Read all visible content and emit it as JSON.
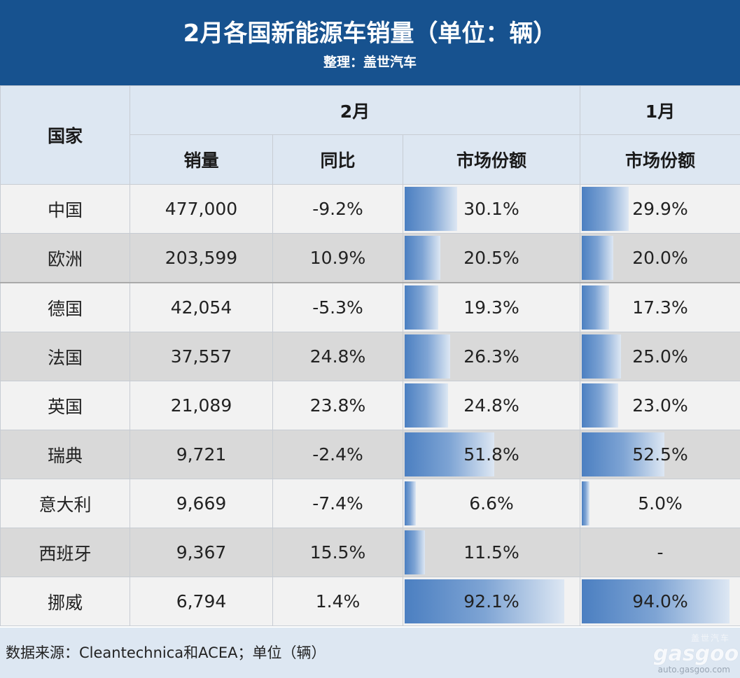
{
  "header": {
    "title": "2月各国新能源车销量（单位：辆）",
    "subtitle": "整理：盖世汽车"
  },
  "table_headers": {
    "country": "国家",
    "feb": "2月",
    "jan": "1月",
    "sales": "销量",
    "yoy": "同比",
    "share_feb": "市场份额",
    "share_jan": "市场份额"
  },
  "chart_data": {
    "type": "table",
    "columns": [
      "国家",
      "2月 销量",
      "2月 同比",
      "2月 市场份额",
      "1月 市场份额"
    ],
    "rows": [
      {
        "country": "中国",
        "sales": "477,000",
        "yoy": "-9.2%",
        "share_feb": "30.1%",
        "share_jan": "29.9%",
        "share_feb_value": 30.1,
        "share_jan_value": 29.9
      },
      {
        "country": "欧洲",
        "sales": "203,599",
        "yoy": "10.9%",
        "share_feb": "20.5%",
        "share_jan": "20.0%",
        "share_feb_value": 20.5,
        "share_jan_value": 20.0
      },
      {
        "country": "德国",
        "sales": "42,054",
        "yoy": "-5.3%",
        "share_feb": "19.3%",
        "share_jan": "17.3%",
        "share_feb_value": 19.3,
        "share_jan_value": 17.3
      },
      {
        "country": "法国",
        "sales": "37,557",
        "yoy": "24.8%",
        "share_feb": "26.3%",
        "share_jan": "25.0%",
        "share_feb_value": 26.3,
        "share_jan_value": 25.0
      },
      {
        "country": "英国",
        "sales": "21,089",
        "yoy": "23.8%",
        "share_feb": "24.8%",
        "share_jan": "23.0%",
        "share_feb_value": 24.8,
        "share_jan_value": 23.0
      },
      {
        "country": "瑞典",
        "sales": "9,721",
        "yoy": "-2.4%",
        "share_feb": "51.8%",
        "share_jan": "52.5%",
        "share_feb_value": 51.8,
        "share_jan_value": 52.5
      },
      {
        "country": "意大利",
        "sales": "9,669",
        "yoy": "-7.4%",
        "share_feb": "6.6%",
        "share_jan": "5.0%",
        "share_feb_value": 6.6,
        "share_jan_value": 5.0
      },
      {
        "country": "西班牙",
        "sales": "9,367",
        "yoy": "15.5%",
        "share_feb": "11.5%",
        "share_jan": "-",
        "share_feb_value": 11.5,
        "share_jan_value": null
      },
      {
        "country": "挪威",
        "sales": "6,794",
        "yoy": "1.4%",
        "share_feb": "92.1%",
        "share_jan": "94.0%",
        "share_feb_value": 92.1,
        "share_jan_value": 94.0
      }
    ],
    "colors": {
      "header": "#17528f",
      "header_cells": "#dde7f2",
      "negative": "#2eaa4f",
      "positive": "#e0212a",
      "bar": "#4b7fc1"
    }
  },
  "footer": {
    "source": "数据来源：Cleantechnica和ACEA；单位（辆）",
    "watermark_cn": "盖世汽车",
    "watermark_logo": "gasgoo",
    "watermark_url": "auto.gasgoo.com"
  }
}
